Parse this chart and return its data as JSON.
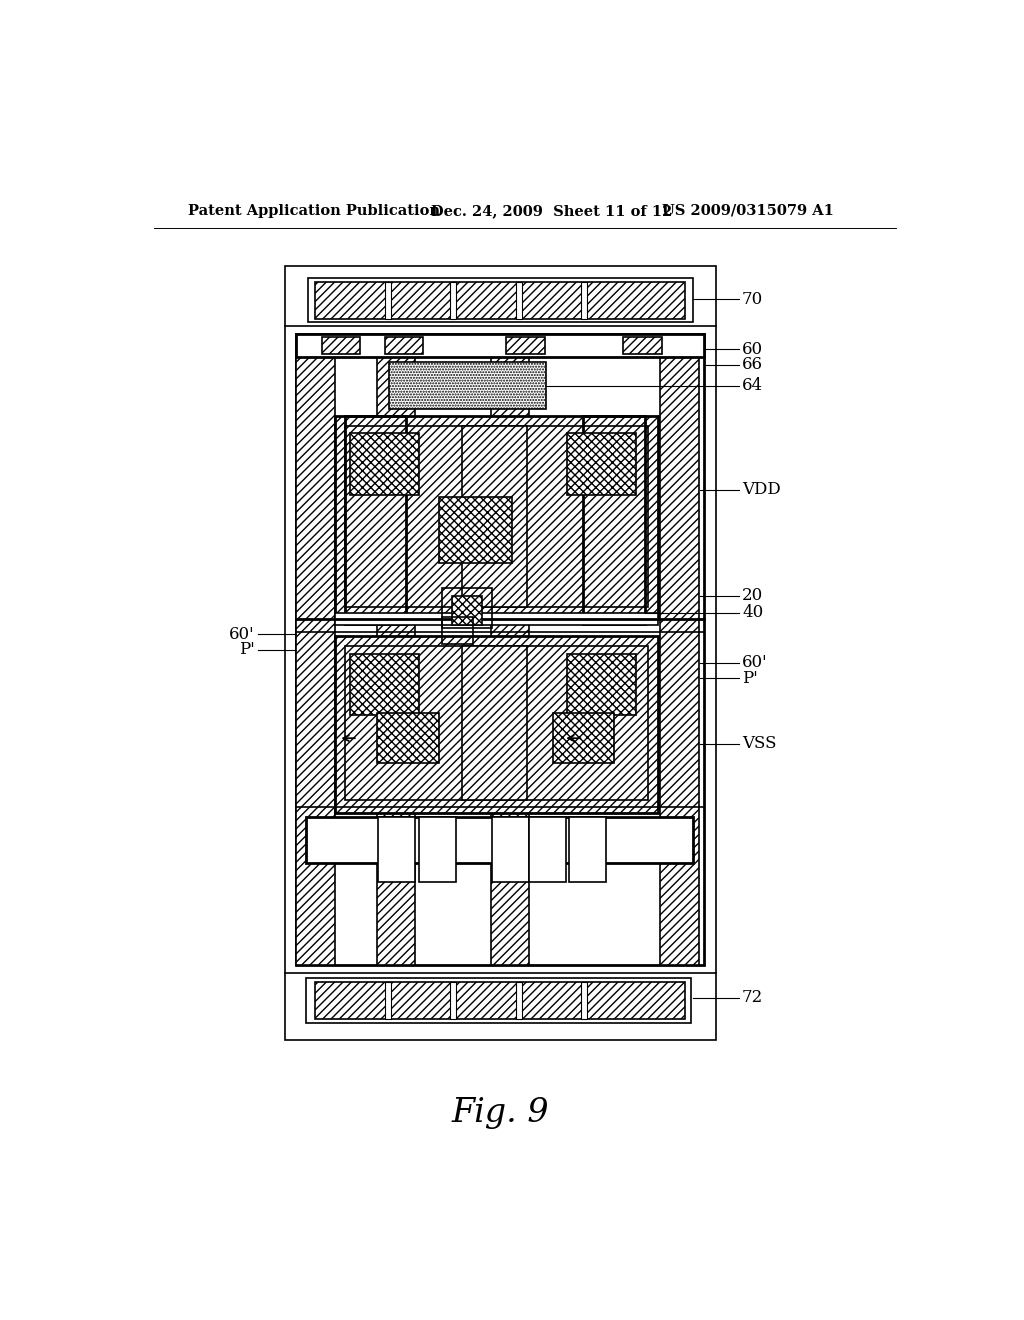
{
  "bg_color": "#ffffff",
  "header_left": "Patent Application Publication",
  "header_mid": "Dec. 24, 2009  Sheet 11 of 12",
  "header_right": "US 2009/0315079 A1",
  "fig_label": "Fig. 9",
  "ann_lw": 0.8
}
